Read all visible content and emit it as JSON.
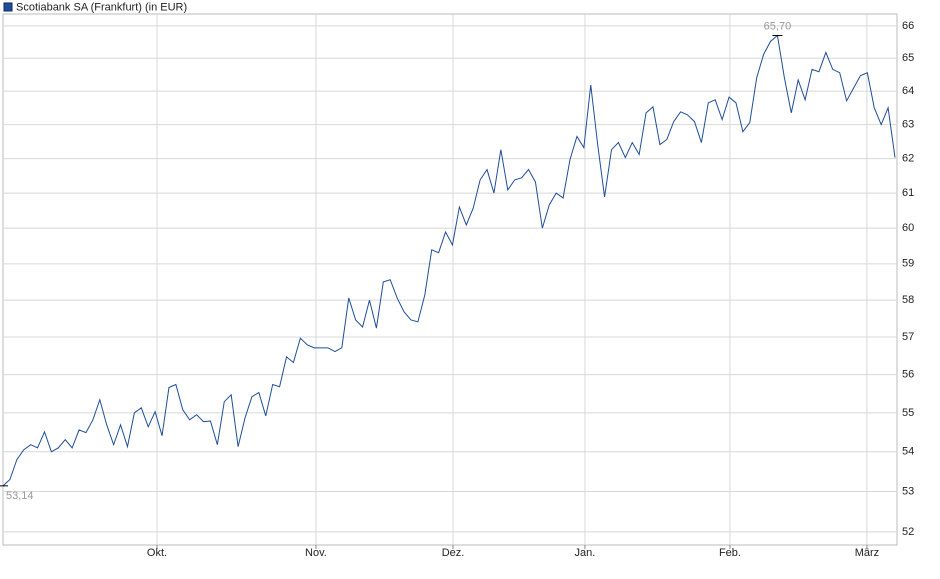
{
  "chart_data": {
    "type": "line",
    "legend": "Scotiabank SA (Frankfurt) (in EUR)",
    "series": [
      {
        "name": "Scotiabank SA (Frankfurt) (in EUR)",
        "color": "#1f4e99",
        "values": [
          53.14,
          53.3,
          53.8,
          54.05,
          54.18,
          54.1,
          54.51,
          54.0,
          54.1,
          54.31,
          54.1,
          54.56,
          54.49,
          54.82,
          55.34,
          54.69,
          54.18,
          54.69,
          54.13,
          55.0,
          55.13,
          54.64,
          55.03,
          54.41,
          55.66,
          55.74,
          55.08,
          54.82,
          54.95,
          54.77,
          54.79,
          54.18,
          55.29,
          55.47,
          54.13,
          54.87,
          55.42,
          55.53,
          54.92,
          55.74,
          55.68,
          56.47,
          56.32,
          56.97,
          56.79,
          56.71,
          56.71,
          56.71,
          56.61,
          56.71,
          58.06,
          57.46,
          57.27,
          58.0,
          57.24,
          58.5,
          58.56,
          58.06,
          57.68,
          57.46,
          57.41,
          58.14,
          59.39,
          59.31,
          59.89,
          59.53,
          60.6,
          60.09,
          60.57,
          61.38,
          61.68,
          61.0,
          62.26,
          61.09,
          61.38,
          61.44,
          61.68,
          61.32,
          60.0,
          60.66,
          61.0,
          60.86,
          61.97,
          62.65,
          62.32,
          64.19,
          62.41,
          60.89,
          62.26,
          62.47,
          62.03,
          62.47,
          62.12,
          63.35,
          63.53,
          62.41,
          62.56,
          63.09,
          63.38,
          63.29,
          63.09,
          62.47,
          63.65,
          63.74,
          63.15,
          63.82,
          63.65,
          62.79,
          63.06,
          64.41,
          65.12,
          65.52,
          65.7,
          64.41,
          63.35,
          64.34,
          63.74,
          64.66,
          64.59,
          65.18,
          64.66,
          64.56,
          63.71,
          64.09,
          64.47,
          64.56,
          63.5,
          63.0,
          63.5,
          62.03
        ],
        "value_labels": [
          "53,14",
          null,
          null,
          null,
          null,
          null,
          null,
          null,
          null,
          null,
          null,
          null,
          null,
          null,
          null,
          null,
          null,
          null,
          null,
          null,
          null,
          null,
          null,
          null,
          null,
          null,
          null,
          null,
          null,
          null,
          null,
          null,
          null,
          null,
          null,
          null,
          null,
          null,
          null,
          null,
          null,
          null,
          null,
          null,
          null,
          null,
          null,
          null,
          null,
          null,
          null,
          null,
          null,
          null,
          null,
          null,
          null,
          null,
          null,
          null,
          null,
          null,
          null,
          null,
          null,
          null,
          null,
          null,
          null,
          null,
          null,
          null,
          null,
          null,
          null,
          null,
          null,
          null,
          null,
          null,
          null,
          null,
          null,
          null,
          null,
          null,
          null,
          null,
          null,
          null,
          null,
          null,
          null,
          null,
          null,
          null,
          null,
          null,
          null,
          null,
          null,
          null,
          null,
          null,
          null,
          null,
          null,
          null,
          null,
          null,
          null,
          null,
          "65,70",
          null,
          null,
          null,
          null,
          null,
          null,
          null,
          null,
          null,
          null,
          null,
          null,
          null,
          null,
          null,
          null,
          null
        ]
      }
    ],
    "xlim": [
      0,
      129
    ],
    "xticks": [
      {
        "value": 22.27,
        "label": "Okt."
      },
      {
        "value": 45.26,
        "label": "Nov."
      },
      {
        "value": 65.08,
        "label": "Dez."
      },
      {
        "value": 84.16,
        "label": "Jan."
      },
      {
        "value": 105.13,
        "label": "Feb."
      },
      {
        "value": 124.94,
        "label": "März"
      }
    ],
    "ylim": [
      51.68,
      66.37
    ],
    "yticks": [
      52,
      53,
      54,
      55,
      56,
      57,
      58,
      59,
      60,
      61,
      62,
      63,
      64,
      65,
      66
    ],
    "ylog": true,
    "grid": true
  }
}
